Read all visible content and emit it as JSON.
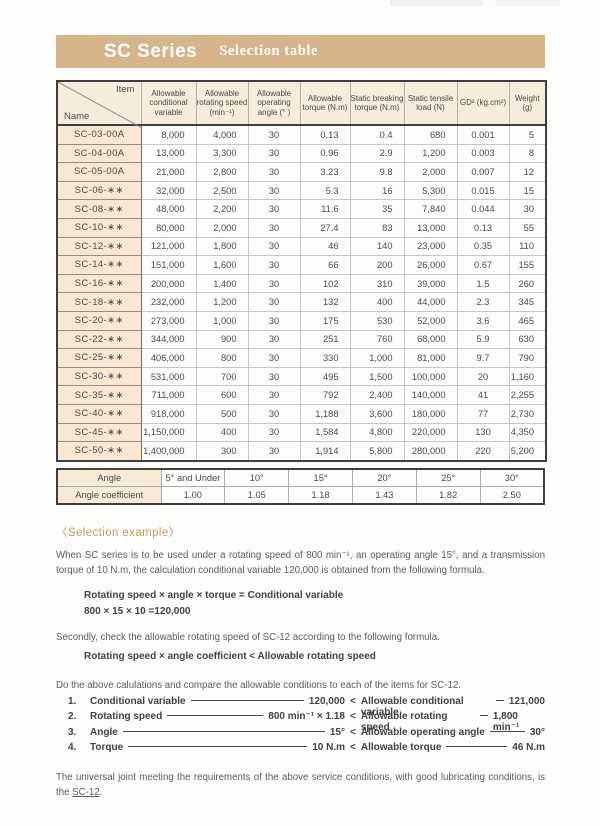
{
  "page": {
    "band_title": "SC Series",
    "band_subtitle": "Selection table"
  },
  "main_table": {
    "corner": {
      "top": "Item",
      "bottom": "Name"
    },
    "columns": [
      "Allowable conditional variable",
      "Allowable rotating speed (min⁻¹)",
      "Allowable operating angle (°  )",
      "Allowable torque (N.m)",
      "Static breaking torque (N.m)",
      "Static tensile load (N)",
      "GD² (kg.cm²)",
      "Weight (g)"
    ],
    "rows": [
      {
        "name": "SC-03-00A",
        "values": [
          "8,000",
          "4,000",
          "30",
          "0.13",
          "0.4",
          "680",
          "0.001",
          "5"
        ]
      },
      {
        "name": "SC-04-00A",
        "values": [
          "13,000",
          "3,300",
          "30",
          "0.96",
          "2.9",
          "1,200",
          "0.003",
          "8"
        ]
      },
      {
        "name": "SC-05-00A",
        "values": [
          "21,000",
          "2,800",
          "30",
          "3.23",
          "9.8",
          "2,000",
          "0.007",
          "12"
        ]
      },
      {
        "name": "SC-06-∗∗",
        "values": [
          "32,000",
          "2,500",
          "30",
          "5.3",
          "16",
          "5,300",
          "0.015",
          "15"
        ]
      },
      {
        "name": "SC-08-∗∗",
        "values": [
          "48,000",
          "2,200",
          "30",
          "11.6",
          "35",
          "7,840",
          "0.044",
          "30"
        ]
      },
      {
        "name": "SC-10-∗∗",
        "values": [
          "80,000",
          "2,000",
          "30",
          "27.4",
          "83",
          "13,000",
          "0.13",
          "55"
        ]
      },
      {
        "name": "SC-12-∗∗",
        "values": [
          "121,000",
          "1,800",
          "30",
          "46",
          "140",
          "23,000",
          "0.35",
          "110"
        ]
      },
      {
        "name": "SC-14-∗∗",
        "values": [
          "151,000",
          "1,600",
          "30",
          "66",
          "200",
          "26,000",
          "0.67",
          "155"
        ]
      },
      {
        "name": "SC-16-∗∗",
        "values": [
          "200,000",
          "1,400",
          "30",
          "102",
          "310",
          "39,000",
          "1.5",
          "260"
        ]
      },
      {
        "name": "SC-18-∗∗",
        "values": [
          "232,000",
          "1,200",
          "30",
          "132",
          "400",
          "44,000",
          "2.3",
          "345"
        ]
      },
      {
        "name": "SC-20-∗∗",
        "values": [
          "273,000",
          "1,000",
          "30",
          "175",
          "530",
          "52,000",
          "3.6",
          "465"
        ]
      },
      {
        "name": "SC-22-∗∗",
        "values": [
          "344,000",
          "900",
          "30",
          "251",
          "760",
          "68,000",
          "5.9",
          "630"
        ]
      },
      {
        "name": "SC-25-∗∗",
        "values": [
          "406,000",
          "800",
          "30",
          "330",
          "1,000",
          "81,000",
          "9.7",
          "790"
        ]
      },
      {
        "name": "SC-30-∗∗",
        "values": [
          "531,000",
          "700",
          "30",
          "495",
          "1,500",
          "100,000",
          "20",
          "1,160"
        ]
      },
      {
        "name": "SC-35-∗∗",
        "values": [
          "711,000",
          "600",
          "30",
          "792",
          "2,400",
          "140,000",
          "41",
          "2,255"
        ]
      },
      {
        "name": "SC-40-∗∗",
        "values": [
          "918,000",
          "500",
          "30",
          "1,188",
          "3,600",
          "180,000",
          "77",
          "2,730"
        ]
      },
      {
        "name": "SC-45-∗∗",
        "values": [
          "1,150,000",
          "400",
          "30",
          "1,584",
          "4,800",
          "220,000",
          "130",
          "4,350"
        ]
      },
      {
        "name": "SC-50-∗∗",
        "values": [
          "1,400,000",
          "300",
          "30",
          "1,914",
          "5,800",
          "280,000",
          "220",
          "5,200"
        ]
      }
    ]
  },
  "angle_table": {
    "row1_label": "Angle",
    "row2_label": "Angle coefficient",
    "angles": [
      "5° and Under",
      "10°",
      "15°",
      "20°",
      "25°",
      "30°"
    ],
    "coefficients": [
      "1.00",
      "1.05",
      "1.18",
      "1.43",
      "1.82",
      "2.50"
    ]
  },
  "selection_example": {
    "heading": "〈Selection example〉",
    "para1": "When SC series is to be used under a rotating speed of 800 min⁻¹, an operating angle 15°, and a transmission torque of 10 N.m, the calculation conditional variable 120,000 is obtained from the following formula.",
    "formula1_line1": "Rotating speed × angle × torque = Conditional variable",
    "formula1_line2": "800 × 15 × 10 =120,000",
    "para2": "Secondly, check the allowable rotating speed of SC-12 according to the following formula.",
    "formula2": "Rotating speed × angle coefficient < Allowable rotating speed",
    "para3": "Do the above calulations and compare the allowable conditions to each of the items for SC-12.",
    "comparisons": [
      {
        "num": "1.",
        "left_label": "Conditional variable",
        "left_value": "120,000",
        "op": "<",
        "right_label": "Allowable conditional variable",
        "right_value": "121,000"
      },
      {
        "num": "2.",
        "left_label": "Rotating speed",
        "left_value": "800 min⁻¹ × 1.18",
        "op": "<",
        "right_label": "Allowable rotating speed",
        "right_value": "1,800 min⁻¹"
      },
      {
        "num": "3.",
        "left_label": "Angle",
        "left_value": "15°",
        "op": "<",
        "right_label": "Allowable operating angle",
        "right_value": "30°"
      },
      {
        "num": "4.",
        "left_label": "Torque",
        "left_value": "10 N.m",
        "op": "<",
        "right_label": "Allowable torque",
        "right_value": "46 N.m"
      }
    ],
    "para4_before": "The universal joint meeting the requirements of the above service conditions, with good lubricating conditions, is the ",
    "para4_link": "SC-12",
    "para4_after": "."
  }
}
